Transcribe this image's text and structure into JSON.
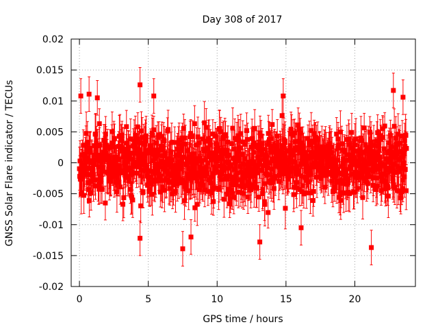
{
  "chart_data": {
    "type": "scatter",
    "title": "Day 308 of 2017",
    "xlabel": "GPS time / hours",
    "ylabel": "GNSS Solar Flare indicator / TECUs",
    "xlim": [
      -0.6,
      24.4
    ],
    "ylim": [
      -0.02,
      0.02
    ],
    "x_ticks": [
      {
        "value": 0,
        "label": "0"
      },
      {
        "value": 5,
        "label": "5"
      },
      {
        "value": 10,
        "label": "10"
      },
      {
        "value": 15,
        "label": "15"
      },
      {
        "value": 20,
        "label": "20"
      }
    ],
    "y_ticks": [
      {
        "value": -0.02,
        "label": "-0.02"
      },
      {
        "value": -0.015,
        "label": "-0.015"
      },
      {
        "value": -0.01,
        "label": "-0.01"
      },
      {
        "value": -0.005,
        "label": "-0.005"
      },
      {
        "value": 0,
        "label": "0"
      },
      {
        "value": 0.005,
        "label": "0.005"
      },
      {
        "value": 0.01,
        "label": "0.01"
      },
      {
        "value": 0.015,
        "label": "0.015"
      },
      {
        "value": 0.02,
        "label": "0.02"
      }
    ],
    "grid": true,
    "legend": "none",
    "marker": "square",
    "series_color": "#ff0000",
    "x_range": [
      0,
      23.75
    ],
    "y_spread": 0.0045,
    "error_bar": 0.0028,
    "notable_points": [
      {
        "x": 0.1,
        "y": 0.0108
      },
      {
        "x": 0.7,
        "y": 0.0111
      },
      {
        "x": 1.3,
        "y": 0.0105
      },
      {
        "x": 4.4,
        "y": 0.0126
      },
      {
        "x": 4.4,
        "y": -0.0122
      },
      {
        "x": 5.4,
        "y": 0.0108
      },
      {
        "x": 7.5,
        "y": -0.0139
      },
      {
        "x": 8.1,
        "y": -0.012
      },
      {
        "x": 13.1,
        "y": -0.0128
      },
      {
        "x": 14.8,
        "y": 0.0108
      },
      {
        "x": 16.1,
        "y": -0.0105
      },
      {
        "x": 21.2,
        "y": -0.0137
      },
      {
        "x": 22.8,
        "y": 0.0117
      },
      {
        "x": 23.5,
        "y": 0.0106
      }
    ]
  }
}
